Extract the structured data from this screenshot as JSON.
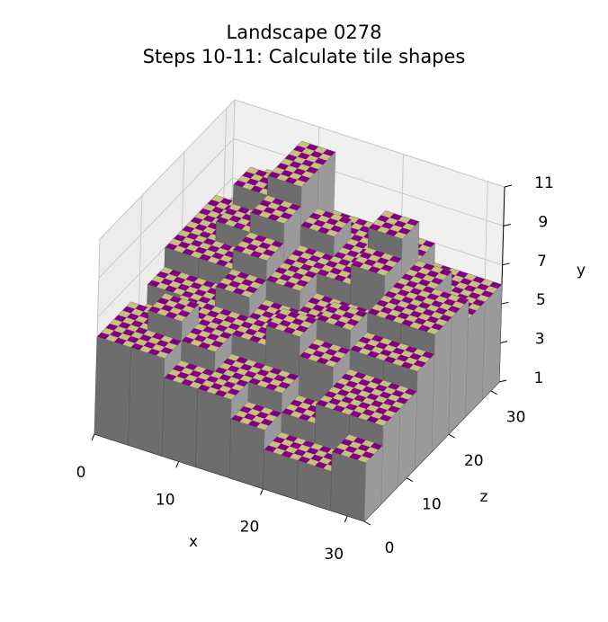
{
  "chart_data": {
    "type": "surface3d",
    "title": "Landscape 0278",
    "subtitle": "Steps 10-11: Calculate tile shapes",
    "x_label": "x",
    "y_label": "y",
    "z_label": "z",
    "xlim": [
      0,
      32
    ],
    "zlim": [
      0,
      32
    ],
    "ylim": [
      1,
      11
    ],
    "xticks": [
      0,
      10,
      20,
      30
    ],
    "zticks": [
      0,
      10,
      20,
      30
    ],
    "yticks": [
      1,
      3,
      5,
      7,
      9,
      11
    ],
    "checker_colors": [
      "#800080",
      "#c8c080"
    ],
    "side_color": "#808080",
    "grid": true,
    "heights": [
      [
        6,
        6,
        5,
        5,
        4,
        3,
        3,
        4
      ],
      [
        6,
        7,
        6,
        5,
        5,
        4,
        5,
        5
      ],
      [
        5,
        6,
        6,
        6,
        7,
        6,
        5,
        5
      ],
      [
        6,
        6,
        7,
        6,
        6,
        7,
        6,
        6
      ],
      [
        7,
        7,
        8,
        7,
        6,
        6,
        7,
        7
      ],
      [
        7,
        8,
        9,
        7,
        7,
        8,
        7,
        7
      ],
      [
        7,
        9,
        10,
        8,
        7,
        9,
        7,
        6
      ],
      [
        6,
        8,
        10,
        7,
        7,
        7,
        6,
        6
      ]
    ]
  }
}
